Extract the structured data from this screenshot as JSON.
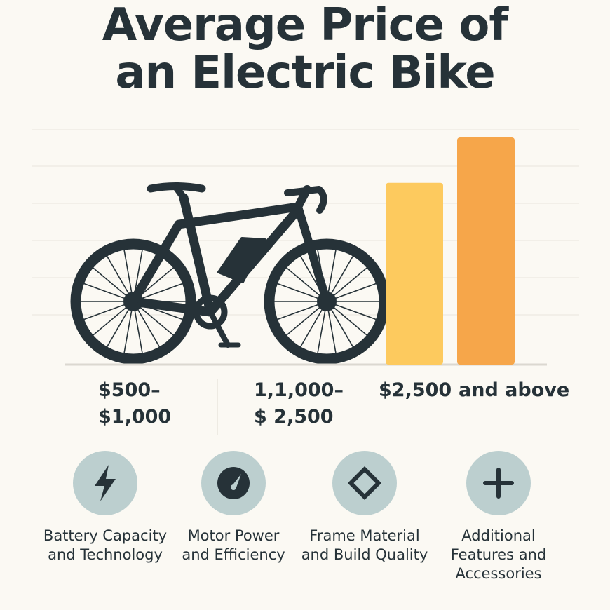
{
  "title_lines": [
    "Average Price of",
    "an Electric Bike"
  ],
  "chart_data": {
    "type": "bar",
    "title": "Average Price of an Electric Bike",
    "categories": [
      "$500–$1,000",
      "1,1,000–$2,500",
      "$2,500",
      "and above"
    ],
    "series": [
      {
        "values": [
          null,
          null,
          0.8,
          1.0
        ]
      }
    ],
    "grid": true,
    "bar_colors": [
      "#fdca5e",
      "#f6a64a"
    ]
  },
  "price_labels": {
    "a": [
      "$500–",
      "$1,000"
    ],
    "b": [
      "1,1,000–",
      "$ 2,500"
    ],
    "c": "$2,500",
    "d": "and above"
  },
  "factors": [
    {
      "icon": "lightning-icon",
      "lines": [
        "Battery Capacity",
        "and Technology"
      ]
    },
    {
      "icon": "gauge-icon",
      "lines": [
        "Motor Power",
        "and Efficiency"
      ]
    },
    {
      "icon": "diamond-icon",
      "lines": [
        "Frame Material",
        "and Build Quality"
      ]
    },
    {
      "icon": "plus-icon",
      "lines": [
        "Additional",
        "Features and",
        "Accessories"
      ]
    }
  ],
  "colors": {
    "background": "#fbf9f3",
    "ink": "#263238",
    "icon_circle": "#bccfcf",
    "bar_yellow": "#fdca5e",
    "bar_orange": "#f6a64a"
  }
}
